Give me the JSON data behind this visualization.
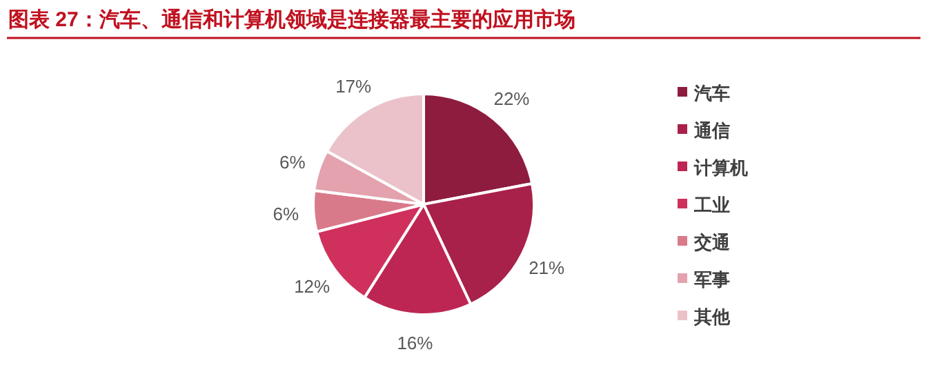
{
  "chart_data": {
    "type": "pie",
    "title": "图表 27：汽车、通信和计算机领域是连接器最主要的应用市场",
    "categories": [
      "汽车",
      "通信",
      "计算机",
      "工业",
      "交通",
      "军事",
      "其他"
    ],
    "values": [
      22,
      21,
      16,
      12,
      6,
      6,
      17
    ],
    "colors": [
      "#8e1c3e",
      "#a8214a",
      "#bd2653",
      "#d0305c",
      "#d97a8b",
      "#e3a2ad",
      "#ebc2c9"
    ],
    "value_labels": [
      "22%",
      "21%",
      "16%",
      "12%",
      "6%",
      "6%",
      "17%"
    ],
    "legend": "right"
  }
}
